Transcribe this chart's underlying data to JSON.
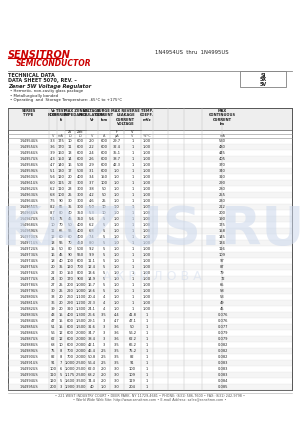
{
  "title_company": "SENSITRON",
  "title_semi": "SEMICONDUCTOR",
  "title_part": "1N4954US  thru  1N4995US",
  "doc_line1": "TECHNICAL DATA",
  "doc_line2": "DATA SHEET 5070, REV. –",
  "product_title": "Zener 5W Voltage Regulator",
  "features": [
    "Hermetic, non-cavity glass package",
    "Metallurgically bonded",
    "Operating  and  Storage Temperature: -65°C to +175°C"
  ],
  "package_types": [
    "SJ",
    "5X",
    "5V"
  ],
  "rows": [
    [
      "1N4954US",
      "3.3",
      "175",
      "10",
      "600",
      "2.0",
      "600",
      "29.7",
      "1",
      "1.00",
      "0.067",
      "530"
    ],
    [
      "1N4955US",
      "3.6",
      "170",
      "11",
      "600",
      "2.2",
      "600",
      "32.4",
      "1",
      "1.00",
      "0.067",
      "480"
    ],
    [
      "1N4956US",
      "3.9",
      "160",
      "13",
      "600",
      "2.4",
      "600",
      "35.1",
      "1",
      "1.00",
      "0.067",
      "445"
    ],
    [
      "1N4957US",
      "4.3",
      "150",
      "14",
      "600",
      "2.6",
      "600",
      "38.7",
      "1",
      "1.00",
      "0.067",
      "405"
    ],
    [
      "1N4958US",
      "4.7",
      "140",
      "16",
      "500",
      "2.9",
      "600",
      "42.3",
      "1",
      "1.00",
      "0.056",
      "370"
    ],
    [
      "1N4959US",
      "5.1",
      "130",
      "17",
      "500",
      "3.1",
      "600",
      "1.0",
      "1",
      "1.00",
      "0.038",
      "340"
    ],
    [
      "1N4960US",
      "5.6",
      "120",
      "20",
      "400",
      "3.4",
      "150",
      "1.0",
      "1",
      "1.00",
      "0.038",
      "310"
    ],
    [
      "1N4961US",
      "6.0",
      "115",
      "22",
      "300",
      "3.7",
      "100",
      "1.0",
      "1",
      "1.00",
      "0.038",
      "290"
    ],
    [
      "1N4962US",
      "6.2",
      "110",
      "23",
      "300",
      "3.8",
      "50",
      "1.0",
      "1",
      "1.00",
      "0.038",
      "280"
    ],
    [
      "1N4963US",
      "6.8",
      "100",
      "25",
      "300",
      "4.2",
      "50",
      "1.0",
      "1",
      "1.00",
      "0.050",
      "255"
    ],
    [
      "1N4964US",
      "7.5",
      "90",
      "30",
      "300",
      "4.6",
      "25",
      "1.0",
      "1",
      "1.00",
      "0.060",
      "230"
    ],
    [
      "1N4965US",
      "8.2",
      "85",
      "35",
      "300",
      "5.0",
      "10",
      "1.0",
      "1",
      "1.00",
      "0.065",
      "212"
    ],
    [
      "1N4966US",
      "8.7",
      "80",
      "40",
      "350",
      "5.3",
      "10",
      "1.0",
      "1",
      "1.00",
      "0.068",
      "200"
    ],
    [
      "1N4967US",
      "9.1",
      "75",
      "45",
      "350",
      "5.6",
      "5",
      "1.0",
      "1",
      "1.00",
      "0.070",
      "190"
    ],
    [
      "1N4968US",
      "10",
      "70",
      "50",
      "400",
      "6.2",
      "5",
      "1.0",
      "1",
      "1.00",
      "0.073",
      "175"
    ],
    [
      "1N4969US",
      "11",
      "65",
      "55",
      "400",
      "6.8",
      "5",
      "1.0",
      "1",
      "1.00",
      "0.074",
      "158"
    ],
    [
      "1N4970US",
      "12",
      "60",
      "60",
      "400",
      "7.4",
      "5",
      "1.0",
      "1",
      "1.00",
      "0.074",
      "145"
    ],
    [
      "1N4971US",
      "13",
      "55",
      "70",
      "450",
      "8.0",
      "5",
      "1.0",
      "1",
      "1.00",
      "0.074",
      "134"
    ],
    [
      "1N4972US",
      "15",
      "50",
      "80",
      "500",
      "9.2",
      "5",
      "1.0",
      "1",
      "1.00",
      "0.074",
      "116"
    ],
    [
      "1N4973US",
      "16",
      "45",
      "90",
      "550",
      "9.9",
      "5",
      "1.0",
      "1",
      "1.00",
      "0.076",
      "109"
    ],
    [
      "1N4974US",
      "18",
      "40",
      "100",
      "600",
      "11.1",
      "5",
      "1.0",
      "1",
      "1.00",
      "0.077",
      "97"
    ],
    [
      "1N4975US",
      "20",
      "35",
      "120",
      "700",
      "12.4",
      "5",
      "1.0",
      "1",
      "1.00",
      "0.077",
      "87"
    ],
    [
      "1N4976US",
      "22",
      "30",
      "150",
      "800",
      "13.6",
      "5",
      "1.0",
      "1",
      "1.00",
      "0.077",
      "79"
    ],
    [
      "1N4977US",
      "24",
      "30",
      "170",
      "900",
      "14.9",
      "5",
      "1.0",
      "1",
      "1.00",
      "0.077",
      "72"
    ],
    [
      "1N4978US",
      "27",
      "25",
      "200",
      "1,000",
      "16.7",
      "5",
      "1.0",
      "1",
      "1.00",
      "0.077",
      "65"
    ],
    [
      "1N4979US",
      "30",
      "25",
      "220",
      "1,000",
      "18.6",
      "5",
      "1.0",
      "1",
      "1.00",
      "0.077",
      "58"
    ],
    [
      "1N4980US",
      "33",
      "20",
      "260",
      "1,100",
      "20.4",
      "4",
      "1.0",
      "1",
      "1.00",
      "0.076",
      "53"
    ],
    [
      "1N4981US",
      "36",
      "20",
      "290",
      "1,200",
      "22.3",
      "4",
      "1.0",
      "1",
      "1.00",
      "0.075",
      "49"
    ],
    [
      "1N4982US",
      "39",
      "20",
      "320",
      "1,300",
      "24.1",
      "4",
      "1.0",
      "1",
      "1.00",
      "0.075",
      "45"
    ],
    [
      "1N4983US",
      "43",
      "15",
      "400",
      "1,300",
      "26.6",
      "3.5",
      "4.4",
      "41.8",
      "1",
      "1.00",
      "0.076"
    ],
    [
      "1N4984US",
      "47",
      "15",
      "600",
      "1,500",
      "29.1",
      "3",
      "4.7",
      "47.1",
      "1",
      "1.00",
      "0.076"
    ],
    [
      "1N4985US",
      "51",
      "15",
      "600",
      "1,500",
      "31.6",
      "3",
      "3.6",
      "50",
      "1",
      "1.00",
      "0.077"
    ],
    [
      "1N4986US",
      "56",
      "12",
      "600",
      "2,000",
      "34.7",
      "3",
      "3.6",
      "56.2",
      "1",
      "1.00",
      "0.079"
    ],
    [
      "1N4987US",
      "62",
      "12",
      "600",
      "2,000",
      "38.4",
      "3",
      "3.6",
      "62.2",
      "1",
      "1.00",
      "0.079"
    ],
    [
      "1N4988US",
      "68",
      "10",
      "600",
      "2,000",
      "42.1",
      "3",
      "3.5",
      "66.2",
      "1",
      "1.00",
      "0.082"
    ],
    [
      "1N4989US",
      "75",
      "8",
      "700",
      "2,000",
      "46.4",
      "2.5",
      "3.5",
      "75.2",
      "1",
      "1.00",
      "0.082"
    ],
    [
      "1N4990US",
      "82",
      "8",
      "700",
      "2,000",
      "50.8",
      "2.5",
      "3.5",
      "82",
      "1",
      "1.00",
      "0.082"
    ],
    [
      "1N4991US",
      "91",
      "7",
      "1,000",
      "2,500",
      "56.4",
      "2.5",
      "3.5",
      "91",
      "1",
      "1.00",
      "0.083"
    ],
    [
      "1N4992US",
      "100",
      "6",
      "1,000",
      "2,500",
      "62.0",
      "2.0",
      "3.0",
      "100",
      "1",
      "1.00",
      "0.083"
    ],
    [
      "1N4993US",
      "110",
      "5",
      "1,175",
      "2,500",
      "68.2",
      "2.0",
      "3.0",
      "109",
      "1",
      "1.00",
      "0.083"
    ],
    [
      "1N4994US",
      "120",
      "5",
      "1,600",
      "3,500",
      "74.4",
      "2.0",
      "3.0",
      "119",
      "1",
      "1.00",
      "0.084"
    ],
    [
      "1N4995US",
      "200",
      "3",
      "1,900",
      "3,500",
      "40",
      "1.0",
      "3.0",
      "204",
      "1",
      "1.00",
      "0.085"
    ]
  ],
  "footer_line1": "• 221 WEST INDUSTRY COURT • DEER PARK, NY 11729-4681 • PHONE: (631) 586-7600 • FAX: (631) 242-9798 •",
  "footer_line2": "• World Wide Web Site: http://www.sensitron.com • E-mail Address: sales@sensitron.com •",
  "watermark1": "KAZUS.RU",
  "watermark2": "А К Р И Л О В А",
  "bg_color": "#ffffff",
  "red_color": "#cc0000",
  "dark": "#222222",
  "mid": "#666666",
  "light_row": "#f2f2f2"
}
